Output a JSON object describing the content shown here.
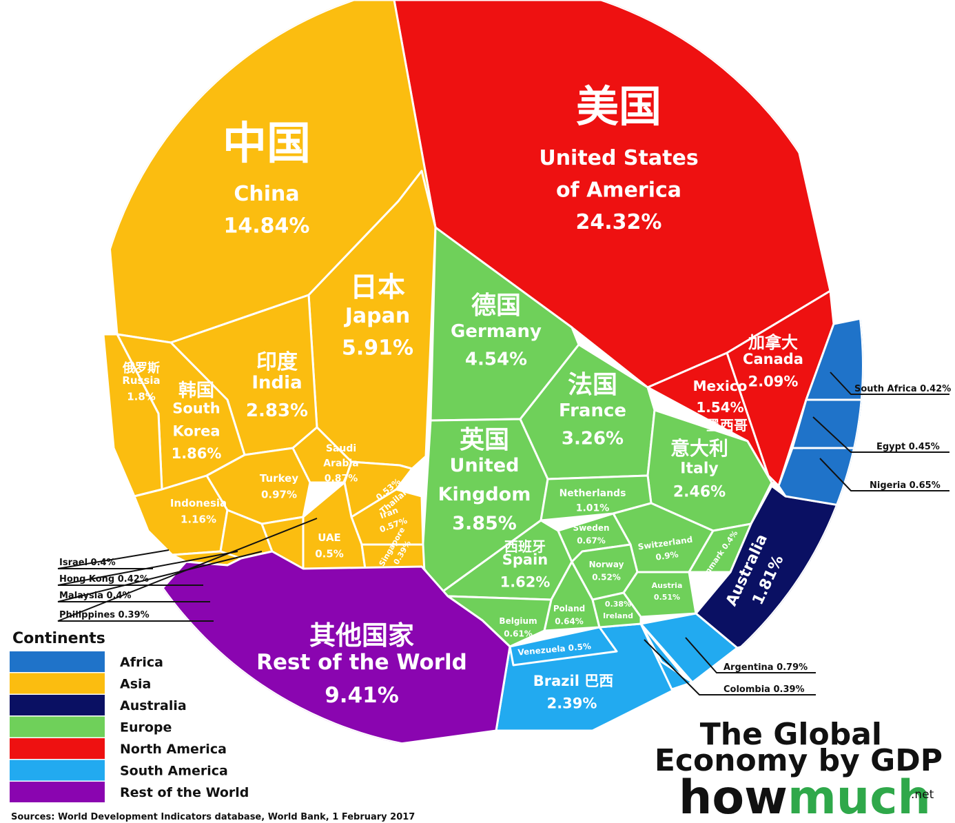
{
  "chart_data": {
    "type": "voronoi_treemap",
    "title": "The Global Economy by GDP",
    "brand": {
      "how": "how",
      "much": "much",
      "tld": ".net"
    },
    "source": "Sources: World Development Indicators database, World Bank, 1 February 2017",
    "legend_title": "Continents",
    "continents": [
      {
        "name": "Africa",
        "color": "#1f73c9"
      },
      {
        "name": "Asia",
        "color": "#fbbd10"
      },
      {
        "name": "Australia",
        "color": "#0a1063"
      },
      {
        "name": "Europe",
        "color": "#6fd05a"
      },
      {
        "name": "North America",
        "color": "#ee1111"
      },
      {
        "name": "South America",
        "color": "#22aaf0"
      },
      {
        "name": "Rest of the World",
        "color": "#8a05b0"
      }
    ],
    "countries": [
      {
        "name": "United States of America",
        "cn": "美国",
        "value": 24.32,
        "continent": "North America"
      },
      {
        "name": "China",
        "cn": "中国",
        "value": 14.84,
        "continent": "Asia"
      },
      {
        "name": "Japan",
        "cn": "日本",
        "value": 5.91,
        "continent": "Asia"
      },
      {
        "name": "Germany",
        "cn": "德国",
        "value": 4.54,
        "continent": "Europe"
      },
      {
        "name": "United Kingdom",
        "cn": "英国",
        "value": 3.85,
        "continent": "Europe"
      },
      {
        "name": "France",
        "cn": "法国",
        "value": 3.26,
        "continent": "Europe"
      },
      {
        "name": "India",
        "cn": "印度",
        "value": 2.83,
        "continent": "Asia"
      },
      {
        "name": "Italy",
        "cn": "意大利",
        "value": 2.46,
        "continent": "Europe"
      },
      {
        "name": "Brazil",
        "cn": "巴西",
        "value": 2.39,
        "continent": "South America"
      },
      {
        "name": "Canada",
        "cn": "加拿大",
        "value": 2.09,
        "continent": "North America"
      },
      {
        "name": "South Korea",
        "cn": "韩国",
        "value": 1.86,
        "continent": "Asia"
      },
      {
        "name": "Russia",
        "cn": "俄罗斯",
        "value": 1.8,
        "continent": "Asia"
      },
      {
        "name": "Australia",
        "cn": "",
        "value": 1.81,
        "continent": "Australia"
      },
      {
        "name": "Spain",
        "cn": "西班牙",
        "value": 1.62,
        "continent": "Europe"
      },
      {
        "name": "Mexico",
        "cn": "墨西哥",
        "value": 1.54,
        "continent": "North America"
      },
      {
        "name": "Indonesia",
        "cn": "",
        "value": 1.16,
        "continent": "Asia"
      },
      {
        "name": "Netherlands",
        "cn": "",
        "value": 1.01,
        "continent": "Europe"
      },
      {
        "name": "Turkey",
        "cn": "",
        "value": 0.97,
        "continent": "Asia"
      },
      {
        "name": "Switzerland",
        "cn": "",
        "value": 0.9,
        "continent": "Europe"
      },
      {
        "name": "Saudi Arabia",
        "cn": "",
        "value": 0.87,
        "continent": "Asia"
      },
      {
        "name": "Argentina",
        "cn": "",
        "value": 0.79,
        "continent": "South America"
      },
      {
        "name": "Sweden",
        "cn": "",
        "value": 0.67,
        "continent": "Europe"
      },
      {
        "name": "Nigeria",
        "cn": "",
        "value": 0.65,
        "continent": "Africa"
      },
      {
        "name": "Poland",
        "cn": "",
        "value": 0.64,
        "continent": "Europe"
      },
      {
        "name": "Belgium",
        "cn": "",
        "value": 0.61,
        "continent": "Europe"
      },
      {
        "name": "Iran",
        "cn": "",
        "value": 0.57,
        "continent": "Asia"
      },
      {
        "name": "Thailand",
        "cn": "",
        "value": 0.53,
        "continent": "Asia"
      },
      {
        "name": "Norway",
        "cn": "",
        "value": 0.52,
        "continent": "Europe"
      },
      {
        "name": "Austria",
        "cn": "",
        "value": 0.51,
        "continent": "Europe"
      },
      {
        "name": "Venezuela",
        "cn": "",
        "value": 0.5,
        "continent": "South America"
      },
      {
        "name": "UAE",
        "cn": "",
        "value": 0.5,
        "continent": "Asia"
      },
      {
        "name": "Egypt",
        "cn": "",
        "value": 0.45,
        "continent": "Africa"
      },
      {
        "name": "South Africa",
        "cn": "",
        "value": 0.42,
        "continent": "Africa"
      },
      {
        "name": "Hong Kong",
        "cn": "",
        "value": 0.42,
        "continent": "Asia"
      },
      {
        "name": "Israel",
        "cn": "",
        "value": 0.4,
        "continent": "Asia"
      },
      {
        "name": "Denmark",
        "cn": "",
        "value": 0.4,
        "continent": "Europe"
      },
      {
        "name": "Malaysia",
        "cn": "",
        "value": 0.4,
        "continent": "Asia"
      },
      {
        "name": "Singapore",
        "cn": "",
        "value": 0.39,
        "continent": "Asia"
      },
      {
        "name": "Philippines",
        "cn": "",
        "value": 0.39,
        "continent": "Asia"
      },
      {
        "name": "Colombia",
        "cn": "",
        "value": 0.39,
        "continent": "South America"
      },
      {
        "name": "Ireland",
        "cn": "",
        "value": 0.38,
        "continent": "Europe"
      },
      {
        "name": "Rest of the World",
        "cn": "其他国家",
        "value": 9.41,
        "continent": "Rest of the World"
      }
    ]
  }
}
